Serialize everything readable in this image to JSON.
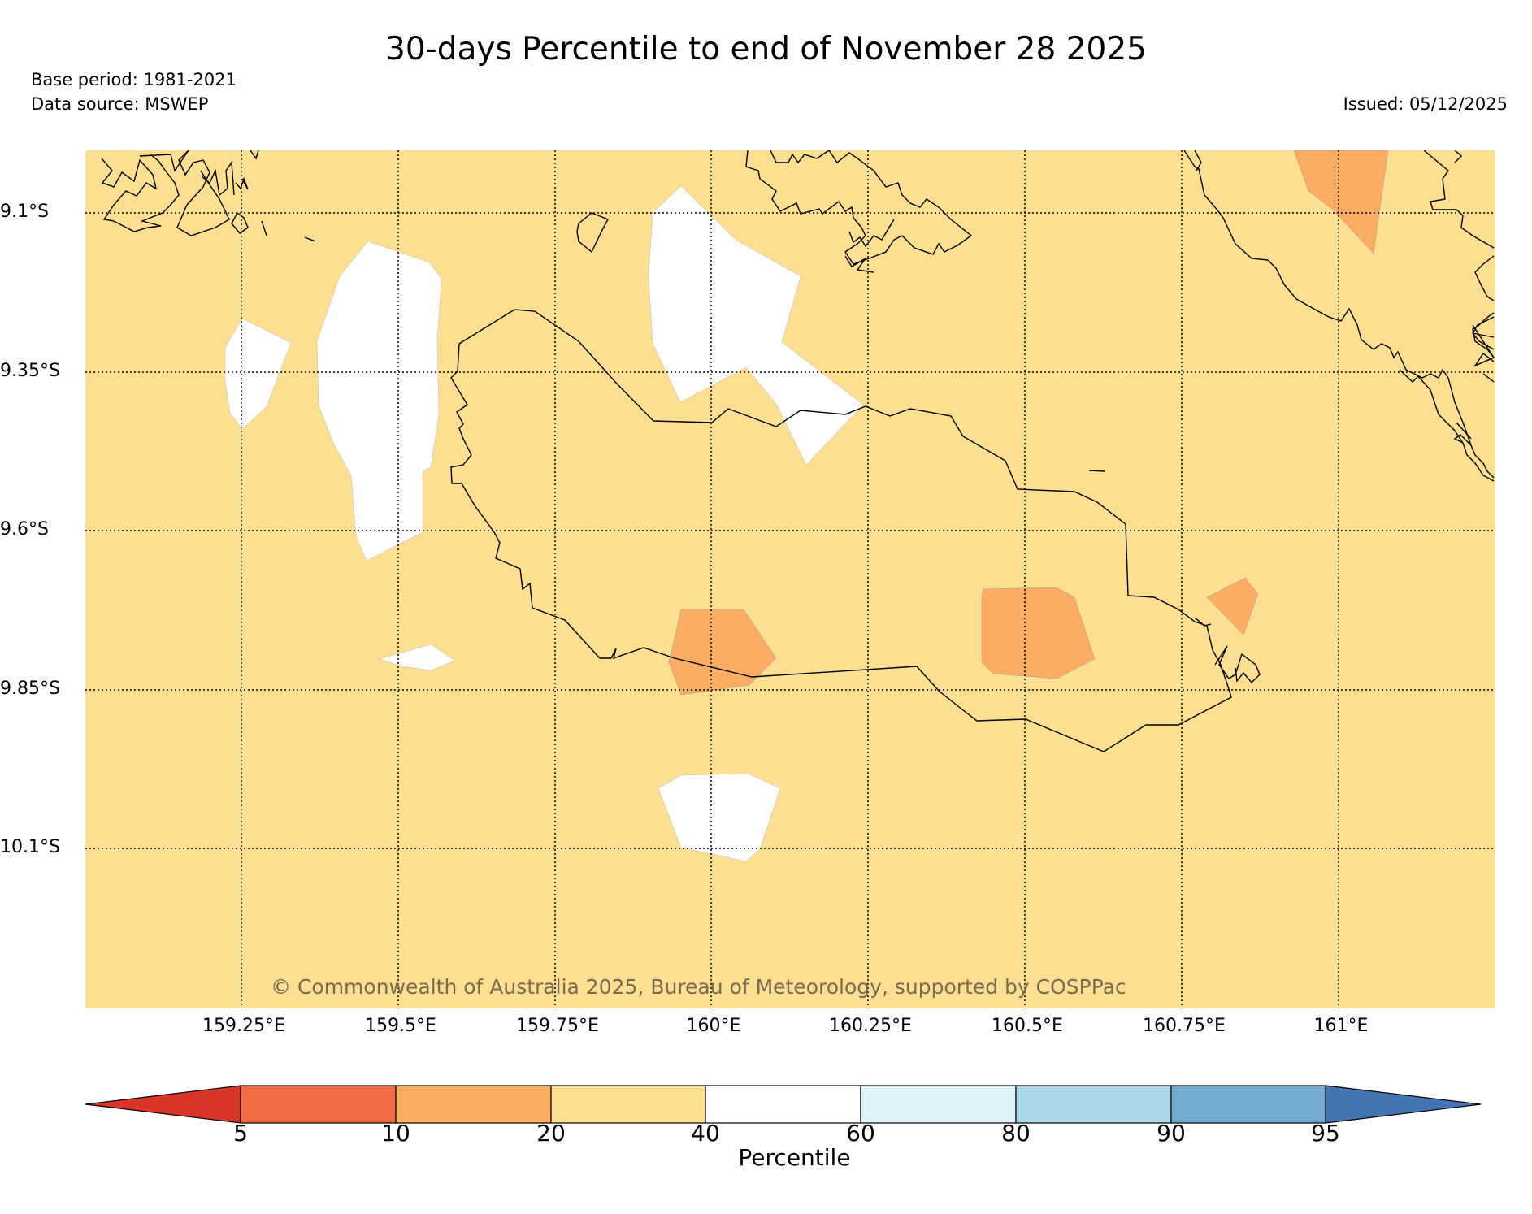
{
  "title": "30-days Percentile to end of November 28 2025",
  "base_period": "Base period: 1981-2021",
  "data_source": "Data source: MSWEP",
  "issued": "Issued: 05/12/2025",
  "copyright": "© Commonwealth of Australia 2025, Bureau of Meteorology, supported by COSPPac",
  "colors": {
    "background": "#fddf92",
    "band_20_40": "#fddf92",
    "band_10_20": "#fbad64",
    "band_40_60": "#ffffff",
    "coast": "#000000"
  },
  "lat_labels": [
    "9.1°S",
    "9.35°S",
    "9.6°S",
    "9.85°S",
    "10.1°S"
  ],
  "lon_labels": [
    "159.25°E",
    "159.5°E",
    "159.75°E",
    "160°E",
    "160.25°E",
    "160.5°E",
    "160.75°E",
    "161°E"
  ],
  "colorbar": {
    "title": "Percentile",
    "ticks": [
      "5",
      "10",
      "20",
      "40",
      "60",
      "80",
      "90",
      "95"
    ],
    "colors": [
      "#d9342a",
      "#f26b43",
      "#fbad64",
      "#fddf92",
      "#ffffff",
      "#dff2f8",
      "#aad8e9",
      "#74abd0",
      "#4574b3"
    ]
  }
}
